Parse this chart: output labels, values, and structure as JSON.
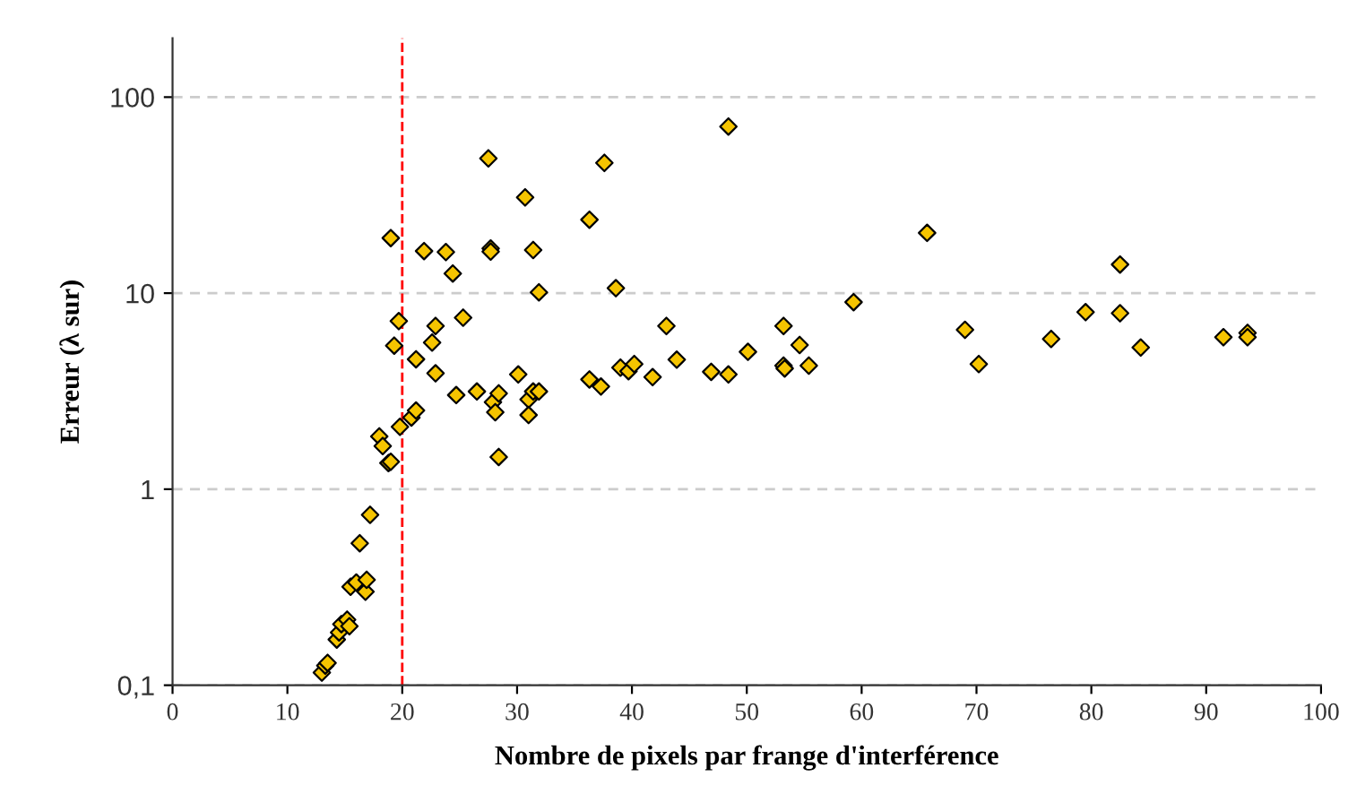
{
  "chart_data": {
    "type": "scatter",
    "xlabel": "Nombre de pixels par frange d'interférence",
    "ylabel": "Erreur (λ sur)",
    "log": "y",
    "grid": "y",
    "marker": "diamond",
    "xlim": [
      0,
      100
    ],
    "xticks": [
      0,
      10,
      20,
      30,
      40,
      50,
      60,
      70,
      80,
      90,
      100
    ],
    "ylim": [
      0.1,
      200
    ],
    "yticks": [
      {
        "value": 0.1,
        "label": "0,1"
      },
      1,
      10,
      100
    ],
    "ref_lines": [
      {
        "axis": "x",
        "value": 20,
        "color": "#ff0000",
        "line_style": "dashed"
      }
    ],
    "series": [
      {
        "color": "#f5c400",
        "x": [
          13.0,
          13.3,
          13.5,
          14.3,
          14.5,
          14.7,
          15.2,
          15.4,
          15.5,
          16.0,
          16.3,
          16.8,
          16.9,
          17.2,
          18.0,
          18.3,
          18.8,
          19.0,
          19.0,
          19.3,
          19.7,
          19.8,
          20.8,
          21.2,
          21.2,
          21.9,
          22.6,
          22.9,
          22.9,
          23.8,
          24.4,
          24.7,
          25.3,
          26.5,
          27.5,
          27.7,
          27.7,
          27.9,
          28.1,
          28.4,
          28.4,
          30.1,
          30.7,
          31.0,
          31.0,
          31.4,
          31.4,
          31.9,
          31.9,
          36.3,
          36.3,
          37.3,
          37.6,
          38.6,
          39.0,
          39.7,
          40.2,
          41.8,
          43.0,
          43.9,
          46.9,
          48.4,
          48.4,
          50.1,
          53.2,
          53.2,
          53.3,
          54.6,
          55.4,
          59.3,
          65.7,
          69.0,
          70.2,
          76.5,
          79.5,
          82.5,
          82.5,
          84.3,
          91.5,
          93.6,
          93.6
        ],
        "values": [
          0.116,
          0.126,
          0.13,
          0.171,
          0.186,
          0.205,
          0.216,
          0.2,
          0.318,
          0.334,
          0.53,
          0.3,
          0.345,
          0.74,
          1.86,
          1.66,
          1.36,
          1.38,
          19.1,
          5.4,
          7.2,
          2.08,
          2.32,
          2.52,
          4.6,
          16.4,
          5.6,
          6.8,
          3.9,
          16.2,
          12.6,
          3.02,
          7.5,
          3.15,
          48.7,
          16.9,
          16.3,
          2.78,
          2.47,
          3.08,
          1.46,
          3.85,
          30.8,
          2.87,
          2.39,
          16.6,
          3.15,
          3.15,
          10.1,
          23.7,
          3.63,
          3.34,
          46.2,
          10.6,
          4.17,
          4.0,
          4.35,
          3.73,
          6.8,
          4.58,
          3.97,
          3.85,
          70.8,
          5.02,
          6.8,
          4.27,
          4.13,
          5.44,
          4.27,
          9.0,
          20.3,
          6.5,
          4.35,
          5.84,
          8.0,
          14.0,
          7.9,
          5.28,
          5.96,
          6.27,
          5.96
        ]
      }
    ]
  }
}
